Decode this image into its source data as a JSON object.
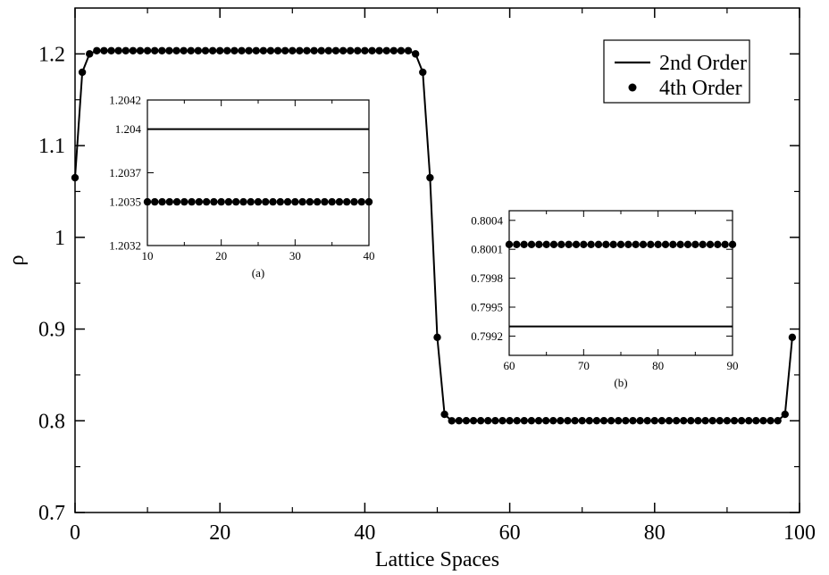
{
  "chart_data": [
    {
      "id": "main",
      "type": "line",
      "xlabel": "Lattice Spaces",
      "ylabel": "ρ",
      "xlim": [
        0,
        100
      ],
      "ylim": [
        0.7,
        1.25
      ],
      "xticks": [
        0,
        20,
        40,
        60,
        80,
        100
      ],
      "xtick_labels": [
        "0",
        "20",
        "40",
        "60",
        "80",
        "100"
      ],
      "yticks": [
        0.7,
        0.8,
        0.9,
        1.0,
        1.1,
        1.2
      ],
      "ytick_labels": [
        "0.7",
        "0.8",
        "0.9",
        "1",
        "1.1",
        "1.2"
      ],
      "legend": {
        "placement": "top-right",
        "entries": [
          {
            "label": "2nd Order",
            "marker": "line"
          },
          {
            "label": "4th Order",
            "marker": "dot"
          }
        ]
      },
      "profile": {
        "x": [
          0,
          1,
          2,
          3,
          4,
          46,
          47,
          48,
          49,
          50,
          51,
          52,
          53,
          97,
          98,
          99
        ],
        "y": [
          1.065,
          1.18,
          1.2,
          1.2035,
          1.2035,
          1.2035,
          1.2,
          1.18,
          1.065,
          0.891,
          0.807,
          0.8,
          0.8001,
          0.8001,
          0.807,
          0.891
        ]
      },
      "series": [
        {
          "name": "2nd Order",
          "style": "line"
        },
        {
          "name": "4th Order",
          "style": "markers",
          "x_range": [
            0,
            99
          ]
        }
      ]
    },
    {
      "id": "inset-a",
      "type": "line",
      "caption": "(a)",
      "xlim": [
        10,
        40
      ],
      "ylim": [
        1.2032,
        1.2042
      ],
      "xticks": [
        10,
        20,
        30,
        40
      ],
      "xtick_labels": [
        "10",
        "20",
        "30",
        "40"
      ],
      "yticks": [
        1.2032,
        1.2035,
        1.2037,
        1.204,
        1.2042
      ],
      "ytick_labels": [
        "1.2032",
        "1.2035",
        "1.2037",
        "1.204",
        "1.2042"
      ],
      "series": [
        {
          "name": "2nd Order",
          "x": [
            10,
            40
          ],
          "y": [
            1.204,
            1.204
          ]
        },
        {
          "name": "4th Order",
          "x": [
            10,
            11,
            12,
            13,
            14,
            15,
            16,
            17,
            18,
            19,
            20,
            21,
            22,
            23,
            24,
            25,
            26,
            27,
            28,
            29,
            30,
            31,
            32,
            33,
            34,
            35,
            36,
            37,
            38,
            39,
            40
          ],
          "y_const": 1.2035
        }
      ]
    },
    {
      "id": "inset-b",
      "type": "line",
      "caption": "(b)",
      "xlim": [
        60,
        90
      ],
      "ylim": [
        0.799,
        0.8005
      ],
      "xticks": [
        60,
        70,
        80,
        90
      ],
      "xtick_labels": [
        "60",
        "70",
        "80",
        "90"
      ],
      "yticks": [
        0.7992,
        0.7995,
        0.7998,
        0.8001,
        0.8004
      ],
      "ytick_labels": [
        "0.7992",
        "0.7995",
        "0.7998",
        "0.8001",
        "0.8004"
      ],
      "series": [
        {
          "name": "2nd Order",
          "x": [
            60,
            90
          ],
          "y": [
            0.7993,
            0.7993
          ]
        },
        {
          "name": "4th Order",
          "x": [
            60,
            61,
            62,
            63,
            64,
            65,
            66,
            67,
            68,
            69,
            70,
            71,
            72,
            73,
            74,
            75,
            76,
            77,
            78,
            79,
            80,
            81,
            82,
            83,
            84,
            85,
            86,
            87,
            88,
            89,
            90
          ],
          "y_const": 0.80015
        }
      ]
    }
  ]
}
